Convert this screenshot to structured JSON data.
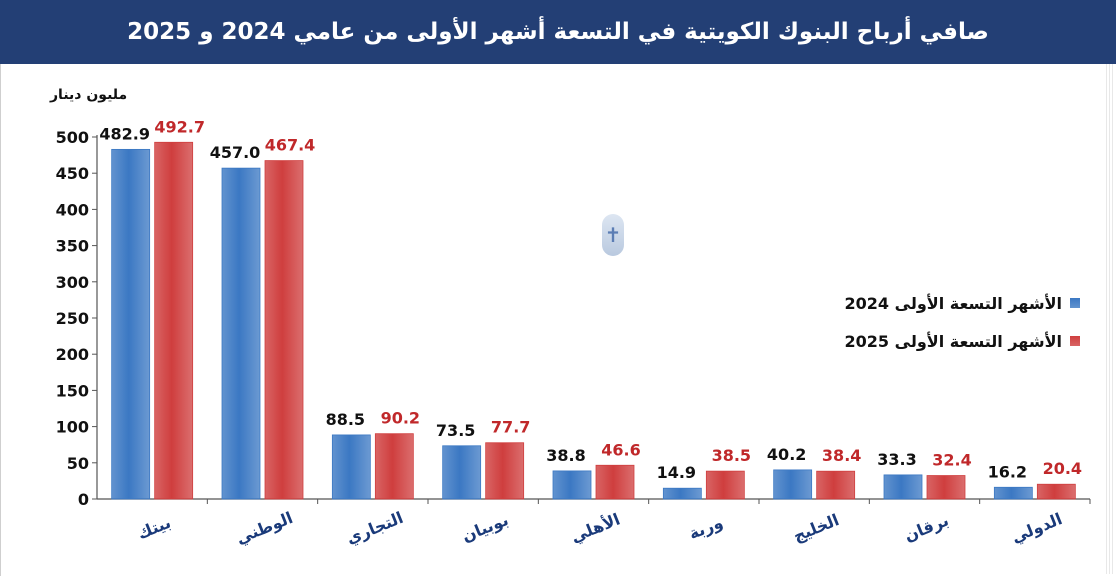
{
  "header": {
    "title": "صافي أرباح البنوك الكويتية في التسعة أشهر الأولى من عامي 2024 و 2025"
  },
  "chart_data": {
    "type": "bar",
    "title": "صافي أرباح البنوك الكويتية في التسعة أشهر الأولى من عامي 2024 و 2025",
    "ylabel": "مليون دينار",
    "xlabel": "",
    "ylim": [
      0,
      500
    ],
    "yticks": [
      0,
      50,
      100,
      150,
      200,
      250,
      300,
      350,
      400,
      450,
      500
    ],
    "categories": [
      "بيتك",
      "الوطني",
      "التجاري",
      "بوبيان",
      "الأهلي",
      "وربة",
      "الخليج",
      "برقان",
      "الدولي"
    ],
    "series": [
      {
        "name": "الأشهر التسعة الأولى 2024",
        "color": "#3b78c3",
        "label_color": "#111111",
        "values": [
          482.9,
          457.0,
          88.5,
          73.5,
          38.8,
          14.9,
          40.2,
          33.3,
          16.2
        ],
        "labels": [
          "482.9",
          "457.0",
          "88.5",
          "73.5",
          "38.8",
          "14.9",
          "40.2",
          "33.3",
          "16.2"
        ]
      },
      {
        "name": "الأشهر التسعة الأولى 2025",
        "color": "#cf3e3e",
        "label_color": "#c0282a",
        "values": [
          492.7,
          467.4,
          90.2,
          77.7,
          46.6,
          38.5,
          38.4,
          32.4,
          20.4
        ],
        "labels": [
          "492.7",
          "467.4",
          "90.2",
          "77.7",
          "46.6",
          "38.5",
          "38.4",
          "32.4",
          "20.4"
        ]
      }
    ],
    "grid": false,
    "legend_position": "right"
  },
  "watermark": {
    "glyph": "✝",
    "icon": "watermark-icon"
  }
}
